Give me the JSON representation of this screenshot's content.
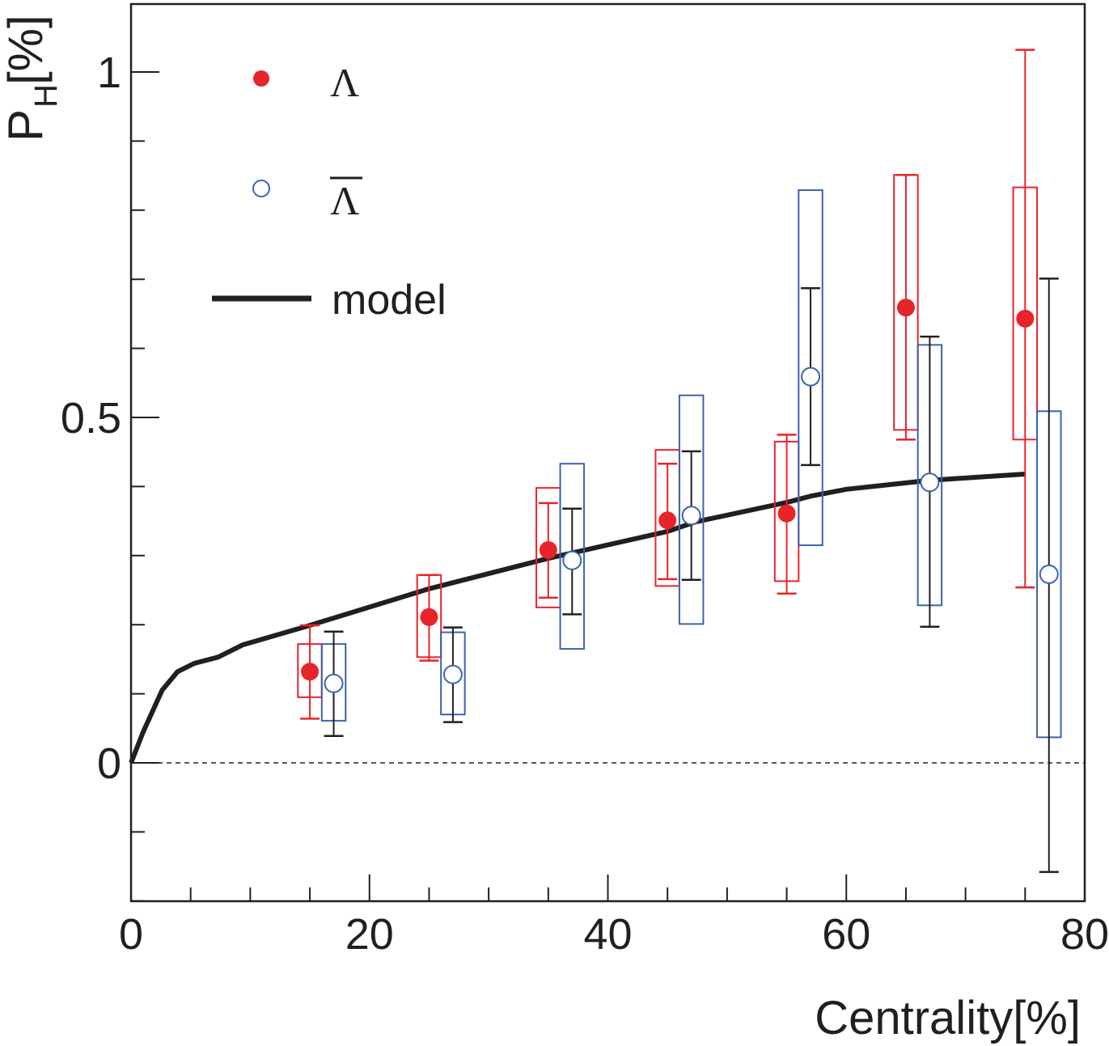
{
  "chart_data": {
    "type": "scatter",
    "xlabel": "Centrality[%]",
    "ylabel_main": "P",
    "ylabel_sub": "H",
    "ylabel_unit": "[%]",
    "xlim": [
      0,
      80
    ],
    "ylim": [
      -0.2,
      1.1
    ],
    "x_ticks": [
      0,
      20,
      40,
      60,
      80
    ],
    "x_tick_labels": [
      "0",
      "20",
      "40",
      "60",
      "80"
    ],
    "y_ticks": [
      0,
      0.5,
      1
    ],
    "y_tick_labels": [
      "0",
      "0.5",
      "1"
    ],
    "reference_line_y": 0,
    "legend": {
      "placement": "top-left",
      "entries": [
        {
          "label": "Λ",
          "series": "lambda"
        },
        {
          "label": "Λ",
          "series": "antilambda",
          "overbar": true
        },
        {
          "label": "model",
          "series": "model"
        }
      ]
    },
    "series": [
      {
        "name": "Λ",
        "key": "lambda",
        "color": "#e8242b",
        "marker": "filled-circle",
        "stat_bar_color": "#e8242b",
        "bin_half_width": 1,
        "x": [
          15,
          25,
          35,
          45,
          55,
          65,
          75
        ],
        "y": [
          0.132,
          0.211,
          0.308,
          0.351,
          0.361,
          0.659,
          0.643
        ],
        "stat_low": [
          0.064,
          0.148,
          0.239,
          0.266,
          0.245,
          0.468,
          0.254
        ],
        "stat_high": [
          0.199,
          0.272,
          0.376,
          0.433,
          0.475,
          0.851,
          1.032
        ],
        "sys_low": [
          0.095,
          0.153,
          0.225,
          0.256,
          0.263,
          0.482,
          0.468
        ],
        "sys_high": [
          0.172,
          0.272,
          0.398,
          0.453,
          0.465,
          0.851,
          0.833
        ]
      },
      {
        "name": "anti-Λ",
        "key": "antilambda",
        "color": "#3b64ad",
        "marker": "open-circle",
        "stat_bar_color": "#231f20",
        "bin_half_width": 1,
        "x": [
          17,
          27,
          37,
          47,
          57,
          67,
          77
        ],
        "y": [
          0.115,
          0.128,
          0.293,
          0.358,
          0.559,
          0.406,
          0.273
        ],
        "stat_low": [
          0.039,
          0.059,
          0.215,
          0.265,
          0.431,
          0.197,
          -0.158
        ],
        "stat_high": [
          0.19,
          0.196,
          0.368,
          0.451,
          0.687,
          0.617,
          0.701
        ],
        "sys_low": [
          0.061,
          0.07,
          0.165,
          0.201,
          0.315,
          0.228,
          0.037
        ],
        "sys_high": [
          0.172,
          0.189,
          0.433,
          0.532,
          0.829,
          0.605,
          0.509
        ]
      },
      {
        "name": "model",
        "key": "model",
        "color": "#231f20",
        "marker": "line",
        "x": [
          0,
          1,
          2.6,
          3.9,
          5.3,
          7.3,
          9.4,
          15,
          25,
          35,
          45,
          47.4,
          55,
          57,
          60,
          67,
          75
        ],
        "y": [
          0,
          0.044,
          0.105,
          0.132,
          0.144,
          0.153,
          0.171,
          0.199,
          0.252,
          0.296,
          0.335,
          0.349,
          0.377,
          0.386,
          0.396,
          0.409,
          0.418
        ]
      }
    ]
  }
}
